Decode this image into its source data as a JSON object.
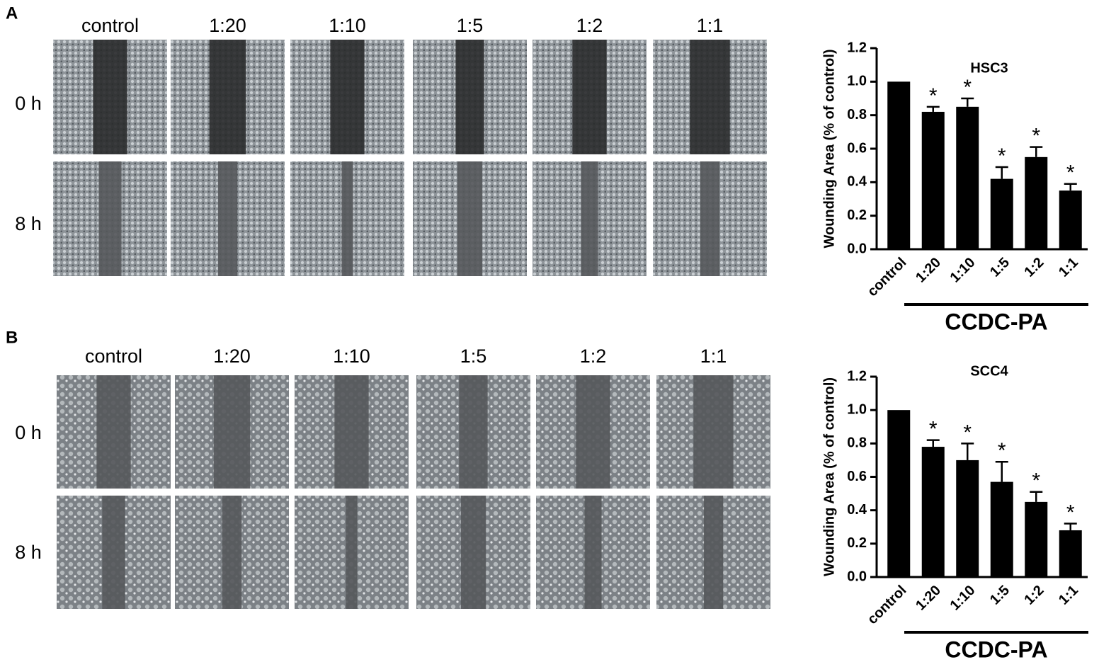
{
  "panels": [
    {
      "label": "A",
      "columns": [
        "control",
        "1:20",
        "1:10",
        "1:5",
        "1:2",
        "1:1"
      ],
      "rows": [
        "0 h",
        "8 h"
      ]
    },
    {
      "label": "B",
      "columns": [
        "control",
        "1:20",
        "1:10",
        "1:5",
        "1:2",
        "1:1"
      ],
      "rows": [
        "0 h",
        "8 h"
      ]
    }
  ],
  "chart_data": [
    {
      "type": "bar",
      "title": "HSC3",
      "y_label": "Wounding  Area (% of control)",
      "categories": [
        "control",
        "1:20",
        "1:10",
        "1:5",
        "1:2",
        "1:1"
      ],
      "values": [
        1.0,
        0.82,
        0.85,
        0.42,
        0.55,
        0.35
      ],
      "errors": [
        null,
        0.03,
        0.05,
        0.07,
        0.06,
        0.04
      ],
      "significance": [
        null,
        "*",
        "*",
        "*",
        "*",
        "*"
      ],
      "group_label": "CCDC-PA",
      "color": "#000000",
      "ylim": [
        0,
        1.2
      ],
      "yticks": [
        {
          "value": 0,
          "label": "0.0"
        },
        0.2,
        0.4,
        0.6,
        0.8,
        {
          "value": 1,
          "label": "1.0"
        },
        1.2
      ]
    },
    {
      "type": "bar",
      "title": "SCC4",
      "y_label": "Wounding  Area (% of control)",
      "categories": [
        "control",
        "1:20",
        "1:10",
        "1:5",
        "1:2",
        "1:1"
      ],
      "values": [
        1.0,
        0.78,
        0.7,
        0.57,
        0.45,
        0.28
      ],
      "errors": [
        null,
        0.04,
        0.1,
        0.12,
        0.06,
        0.04
      ],
      "significance": [
        null,
        "*",
        "*",
        "*",
        "*",
        "*"
      ],
      "group_label": "CCDC-PA",
      "color": "#000000",
      "ylim": [
        0,
        1.2
      ],
      "yticks": [
        {
          "value": 0,
          "label": "0.0"
        },
        0.2,
        0.4,
        0.6,
        0.8,
        {
          "value": 1,
          "label": "1.0"
        },
        1.2
      ]
    }
  ]
}
